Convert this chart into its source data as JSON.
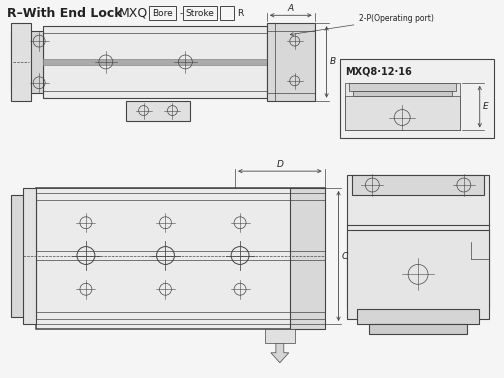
{
  "title": "R–With End Lock",
  "mxq": "MXQ",
  "bore_label": "Bore",
  "stroke_label": "Stroke",
  "r_label": "R",
  "operating_port_label": "2-P(Operating port)",
  "mxq_label": "MXQ8·12·16",
  "bg_color": "#f5f5f5",
  "line_color": "#444444",
  "text_color": "#222222",
  "fc_body": "#e8e8e8",
  "fc_light": "#eeeeee",
  "fc_mid": "#d8d8d8",
  "fc_dark": "#c8c8c8"
}
